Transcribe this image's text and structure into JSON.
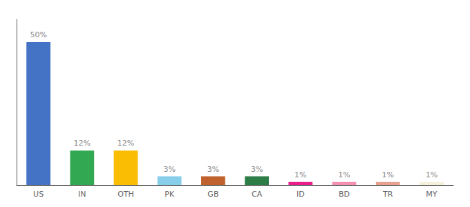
{
  "chart_data": {
    "type": "bar",
    "categories": [
      "US",
      "IN",
      "OTH",
      "PK",
      "GB",
      "CA",
      "ID",
      "BD",
      "TR",
      "MY"
    ],
    "values": [
      50,
      12,
      12,
      3,
      3,
      3,
      1,
      1,
      1,
      1
    ],
    "value_labels": [
      "50%",
      "12%",
      "12%",
      "3%",
      "3%",
      "3%",
      "1%",
      "1%",
      "1%",
      "1%"
    ],
    "colors": [
      "#4472C4",
      "#33A853",
      "#FBBC04",
      "#87CEEB",
      "#C0622D",
      "#2D7D46",
      "#E91E8C",
      "#F48FB1",
      "#E8A090",
      "#F5F0DC"
    ],
    "ylim": [
      0,
      58
    ],
    "data_labels": true,
    "tick_labels": "x",
    "grid": false
  }
}
